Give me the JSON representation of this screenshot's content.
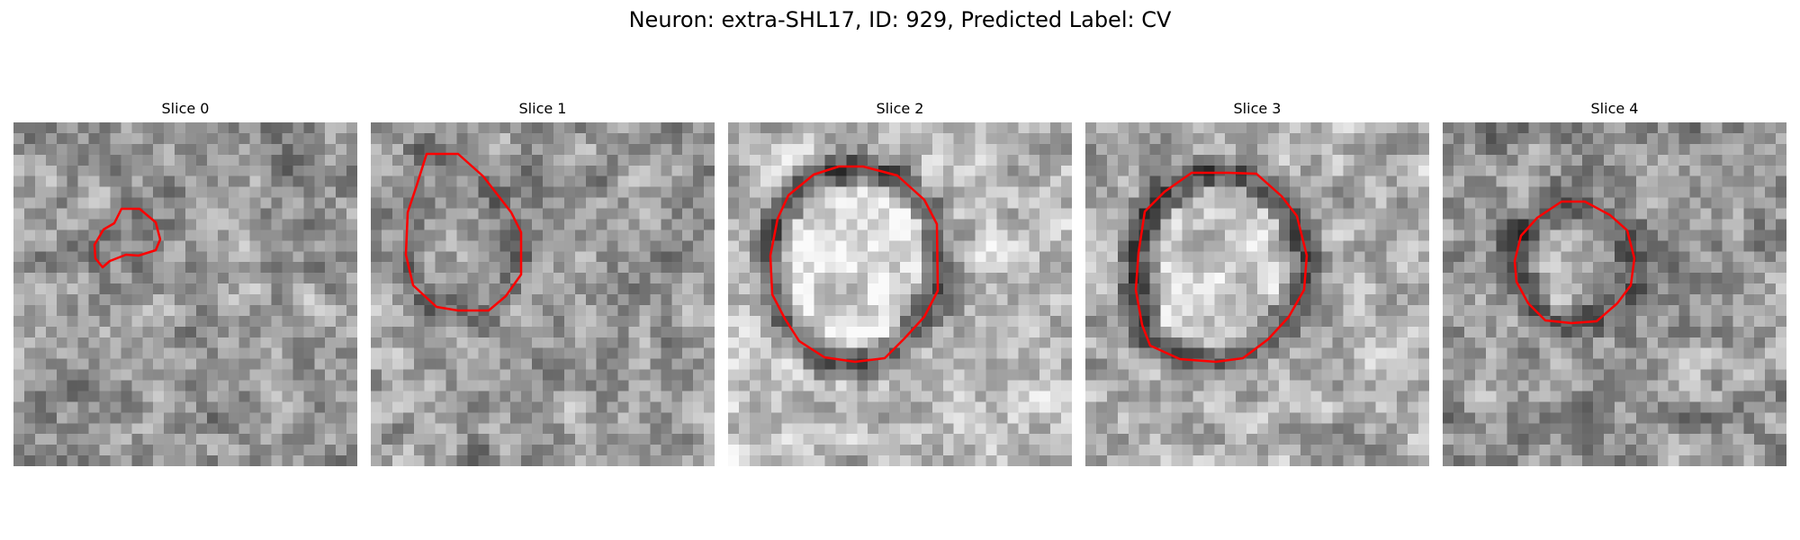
{
  "figure": {
    "title": "Neuron: extra-SHL17, ID: 929, Predicted Label: CV",
    "contour_color": "#ff0000"
  },
  "panels": [
    {
      "title": "Slice 0"
    },
    {
      "title": "Slice 1"
    },
    {
      "title": "Slice 2"
    },
    {
      "title": "Slice 3"
    },
    {
      "title": "Slice 4"
    }
  ]
}
